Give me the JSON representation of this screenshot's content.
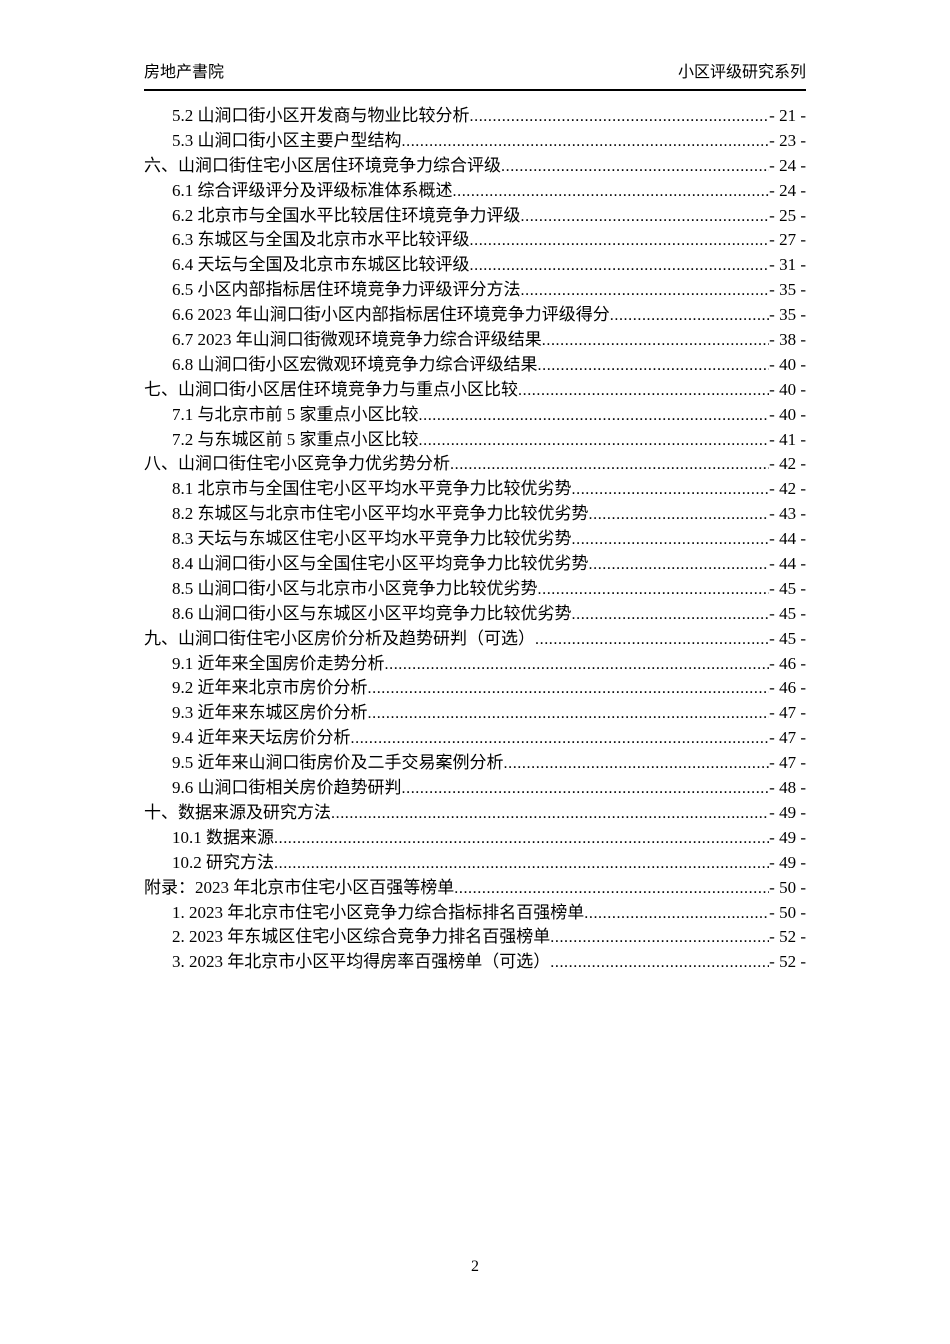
{
  "header": {
    "left": "房地产書院",
    "right": "小区评级研究系列"
  },
  "toc": {
    "entries": [
      {
        "level": 2,
        "label": "5.2 山涧口街小区开发商与物业比较分析",
        "page": "- 21 -"
      },
      {
        "level": 2,
        "label": "5.3 山涧口街小区主要户型结构",
        "page": "- 23 -"
      },
      {
        "level": 1,
        "label": "六、山涧口街住宅小区居住环境竞争力综合评级",
        "page": "- 24 -"
      },
      {
        "level": 2,
        "label": "6.1 综合评级评分及评级标准体系概述",
        "page": "- 24 -"
      },
      {
        "level": 2,
        "label": "6.2 北京市与全国水平比较居住环境竞争力评级",
        "page": "- 25 -"
      },
      {
        "level": 2,
        "label": "6.3 东城区与全国及北京市水平比较评级",
        "page": "- 27 -"
      },
      {
        "level": 2,
        "label": "6.4 天坛与全国及北京市东城区比较评级",
        "page": "- 31 -"
      },
      {
        "level": 2,
        "label": "6.5 小区内部指标居住环境竞争力评级评分方法",
        "page": "- 35 -"
      },
      {
        "level": 2,
        "label": "6.6 2023 年山涧口街小区内部指标居住环境竞争力评级得分",
        "page": "- 35 -"
      },
      {
        "level": 2,
        "label": "6.7 2023 年山涧口街微观环境竞争力综合评级结果",
        "page": "- 38 -"
      },
      {
        "level": 2,
        "label": "6.8 山涧口街小区宏微观环境竞争力综合评级结果",
        "page": "- 40 -"
      },
      {
        "level": 1,
        "label": "七、山涧口街小区居住环境竞争力与重点小区比较",
        "page": "- 40 -"
      },
      {
        "level": 2,
        "label": "7.1 与北京市前 5 家重点小区比较",
        "page": "- 40 -"
      },
      {
        "level": 2,
        "label": "7.2 与东城区前 5 家重点小区比较",
        "page": "- 41 -"
      },
      {
        "level": 1,
        "label": "八、山涧口街住宅小区竞争力优劣势分析",
        "page": "- 42 -"
      },
      {
        "level": 2,
        "label": "8.1 北京市与全国住宅小区平均水平竞争力比较优劣势",
        "page": "- 42 -"
      },
      {
        "level": 2,
        "label": "8.2 东城区与北京市住宅小区平均水平竞争力比较优劣势",
        "page": "- 43 -"
      },
      {
        "level": 2,
        "label": "8.3 天坛与东城区住宅小区平均水平竞争力比较优劣势",
        "page": "- 44 -"
      },
      {
        "level": 2,
        "label": "8.4 山涧口街小区与全国住宅小区平均竞争力比较优劣势",
        "page": "- 44 -"
      },
      {
        "level": 2,
        "label": "8.5 山涧口街小区与北京市小区竞争力比较优劣势",
        "page": "- 45 -"
      },
      {
        "level": 2,
        "label": "8.6 山涧口街小区与东城区小区平均竞争力比较优劣势",
        "page": "- 45 -"
      },
      {
        "level": 1,
        "label": "九、山涧口街住宅小区房价分析及趋势研判（可选）",
        "page": "- 45 -"
      },
      {
        "level": 2,
        "label": "9.1 近年来全国房价走势分析",
        "page": "- 46 -"
      },
      {
        "level": 2,
        "label": "9.2 近年来北京市房价分析",
        "page": "- 46 -"
      },
      {
        "level": 2,
        "label": "9.3 近年来东城区房价分析",
        "page": "- 47 -"
      },
      {
        "level": 2,
        "label": "9.4 近年来天坛房价分析",
        "page": "- 47 -"
      },
      {
        "level": 2,
        "label": "9.5 近年来山涧口街房价及二手交易案例分析",
        "page": "- 47 -"
      },
      {
        "level": 2,
        "label": "9.6 山涧口街相关房价趋势研判",
        "page": "- 48 -"
      },
      {
        "level": 1,
        "label": "十、数据来源及研究方法",
        "page": "- 49 -"
      },
      {
        "level": 2,
        "label": "10.1 数据来源",
        "page": "- 49 -"
      },
      {
        "level": 2,
        "label": "10.2 研究方法",
        "page": "- 49 -"
      },
      {
        "level": 1,
        "label": "附录：2023 年北京市住宅小区百强等榜单",
        "page": "- 50 -"
      },
      {
        "level": 2,
        "label": "1. 2023 年北京市住宅小区竞争力综合指标排名百强榜单",
        "page": "- 50 -"
      },
      {
        "level": 2,
        "label": "2. 2023 年东城区住宅小区综合竞争力排名百强榜单",
        "page": "- 52 -"
      },
      {
        "level": 2,
        "label": "3. 2023 年北京市小区平均得房率百强榜单（可选）",
        "page": "- 52 -"
      }
    ]
  },
  "footer": {
    "page_number": "2"
  }
}
